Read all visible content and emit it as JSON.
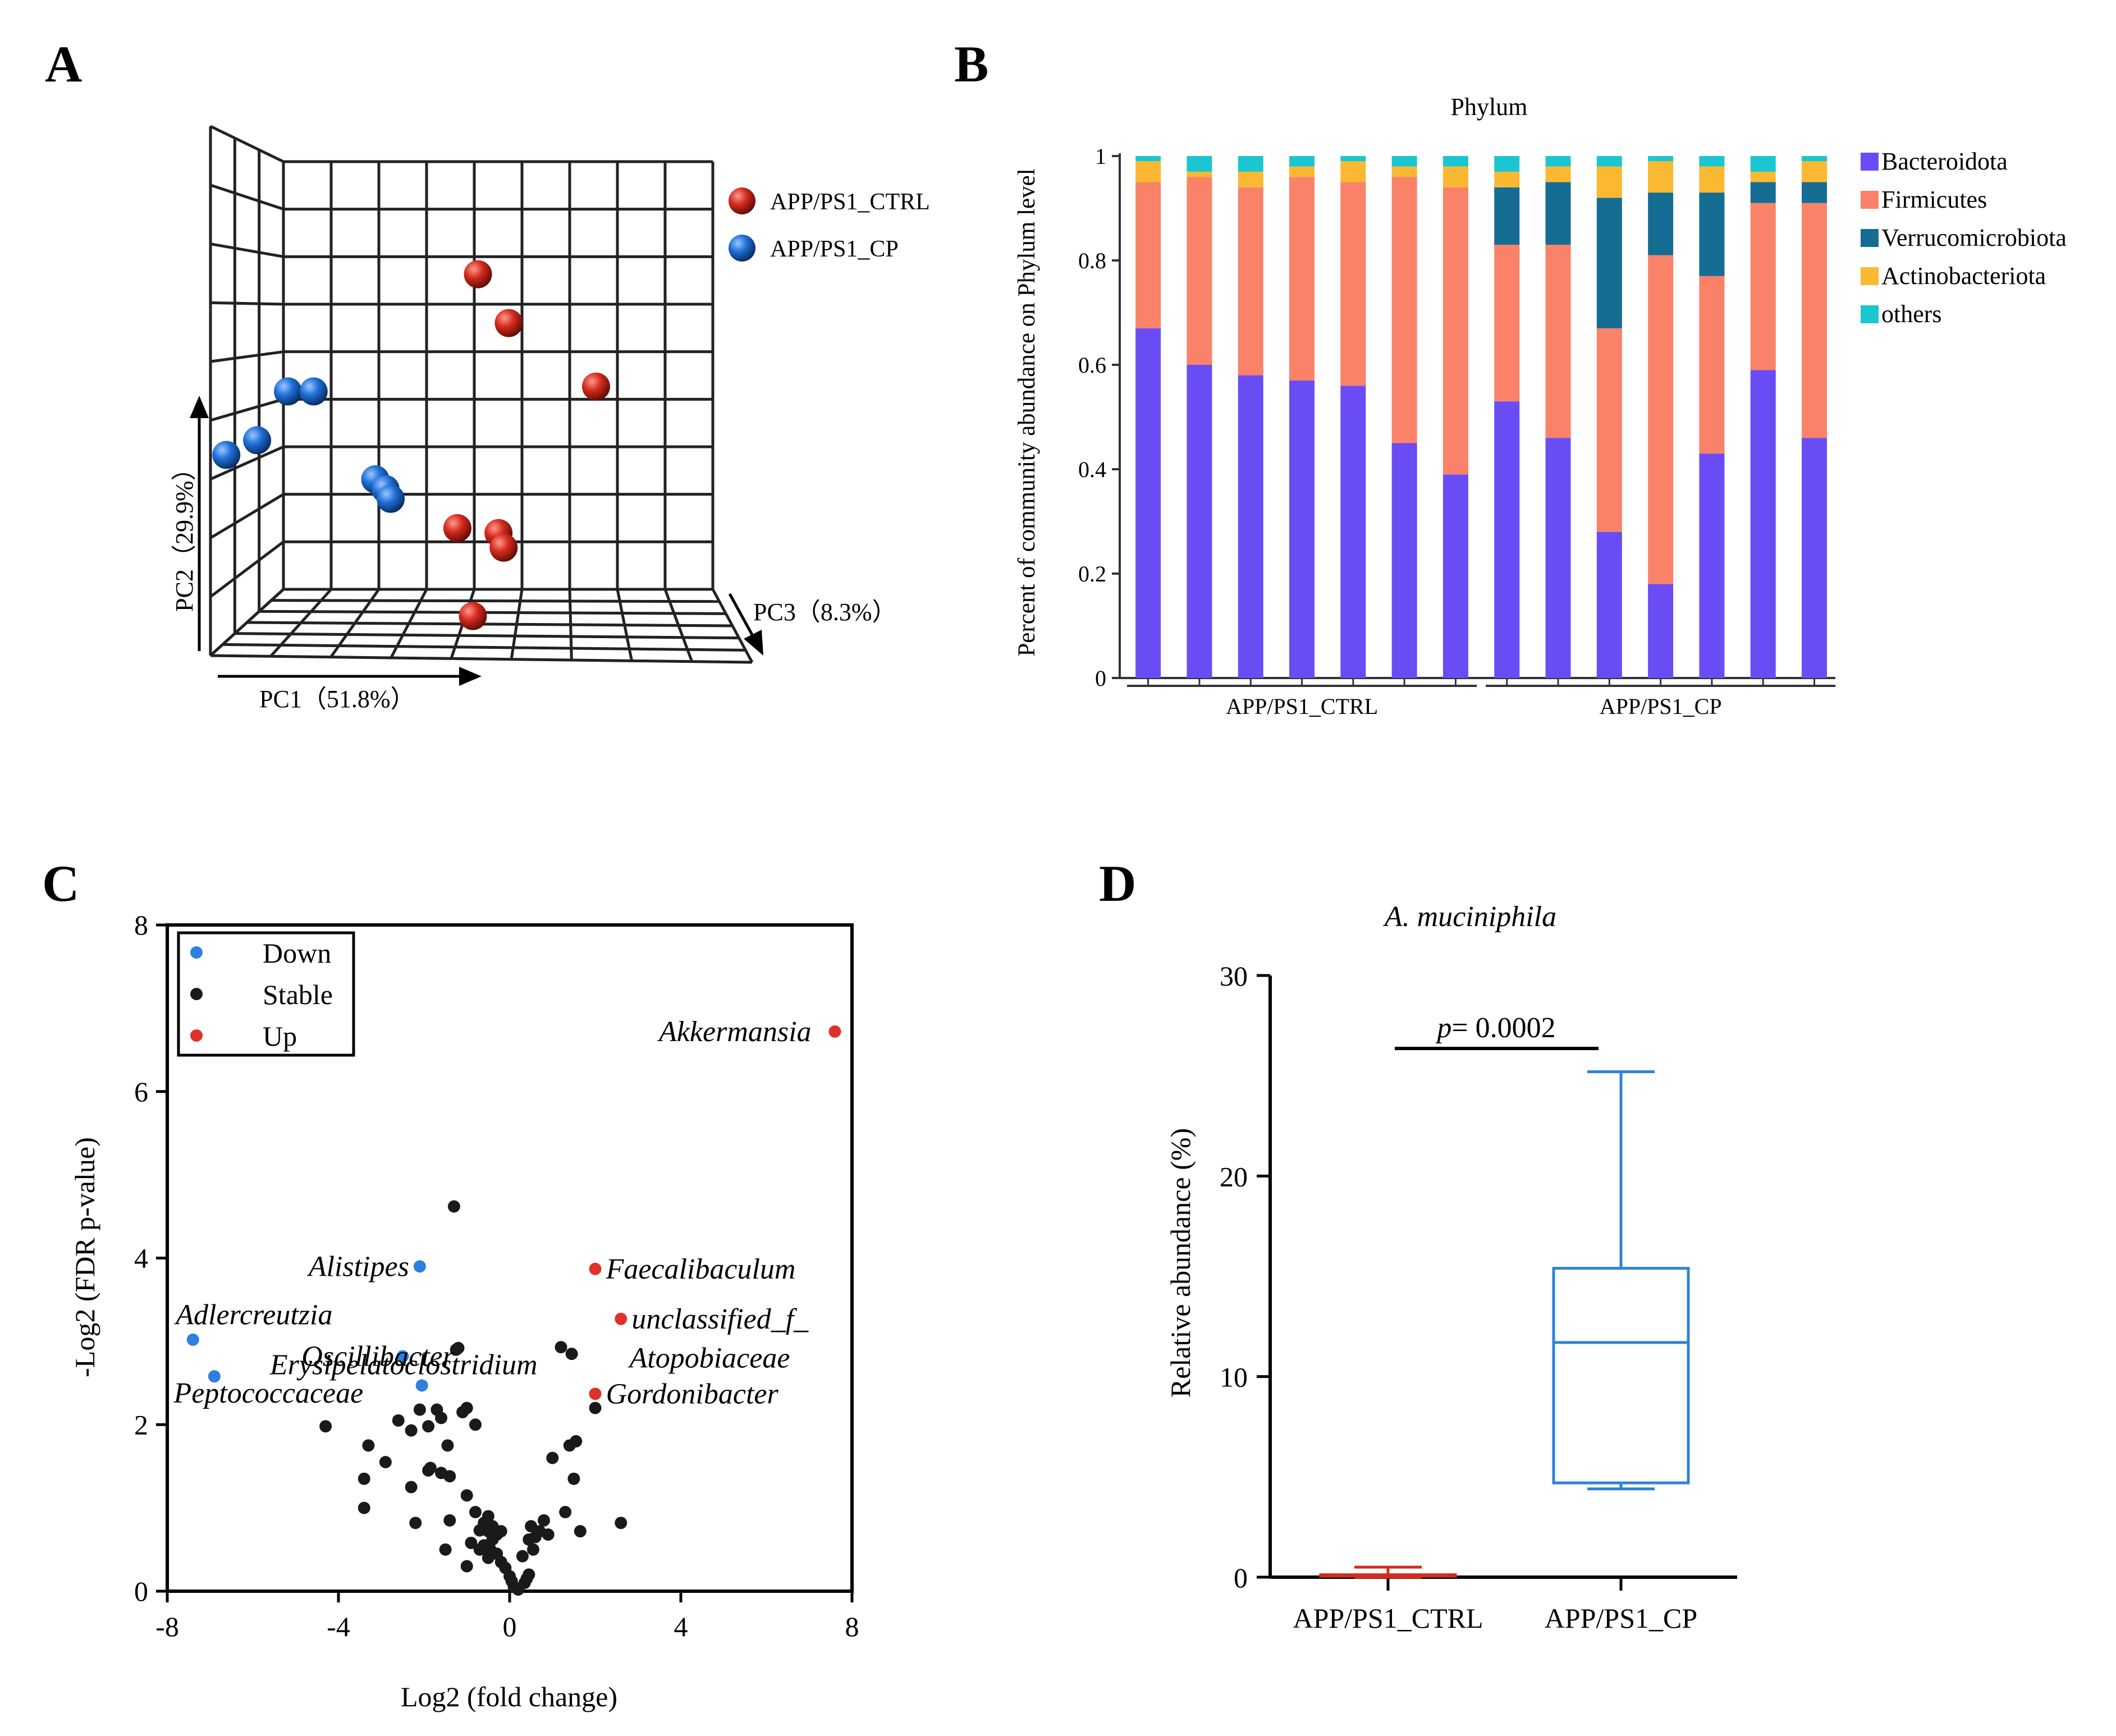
{
  "panels": {
    "a": "A",
    "b": "B",
    "c": "C",
    "d": "D"
  },
  "chart_data": [
    {
      "id": "A",
      "type": "scatter",
      "title": "",
      "axes": {
        "pc1": "PC1（51.8%）",
        "pc2": "PC2（29.9%）",
        "pc3": "PC3（8.3%）"
      },
      "legend": [
        {
          "name": "APP/PS1_CTRL",
          "color": "#d42b1e"
        },
        {
          "name": "APP/PS1_CP",
          "color": "#1f6fd6"
        }
      ],
      "series": [
        {
          "name": "APP/PS1_CTRL",
          "color": "#d42b1e",
          "points": [
            [
              0.57,
              0.72
            ],
            [
              0.63,
              0.62
            ],
            [
              0.8,
              0.49
            ],
            [
              0.53,
              0.2
            ],
            [
              0.61,
              0.19
            ],
            [
              0.62,
              0.16
            ],
            [
              0.56,
              0.02
            ]
          ]
        },
        {
          "name": "APP/PS1_CP",
          "color": "#1f6fd6",
          "points": [
            [
              0.2,
              0.48
            ],
            [
              0.25,
              0.48
            ],
            [
              0.14,
              0.38
            ],
            [
              0.08,
              0.35
            ],
            [
              0.37,
              0.3
            ],
            [
              0.39,
              0.28
            ],
            [
              0.4,
              0.26
            ]
          ]
        }
      ]
    },
    {
      "id": "B",
      "type": "bar",
      "stacked": true,
      "title": "Phylum",
      "ylabel": "Percent of community abundance on Phylum level",
      "ylim": [
        0,
        1
      ],
      "yticks": [
        "0",
        "0.2",
        "0.4",
        "0.6",
        "0.8",
        "1"
      ],
      "groups": [
        {
          "label": "APP/PS1_CTRL",
          "count": 7
        },
        {
          "label": "APP/PS1_CP",
          "count": 7
        }
      ],
      "series": [
        {
          "name": "Bacteroidota",
          "color": "#6a4cf5",
          "values": [
            0.67,
            0.6,
            0.58,
            0.57,
            0.56,
            0.45,
            0.39,
            0.53,
            0.46,
            0.28,
            0.18,
            0.43,
            0.59,
            0.46
          ]
        },
        {
          "name": "Firmicutes",
          "color": "#fa8268",
          "values": [
            0.28,
            0.36,
            0.36,
            0.39,
            0.39,
            0.51,
            0.55,
            0.3,
            0.37,
            0.39,
            0.63,
            0.34,
            0.32,
            0.45
          ]
        },
        {
          "name": "Verrucomicrobiota",
          "color": "#156d94",
          "values": [
            0,
            0,
            0,
            0,
            0,
            0,
            0,
            0.11,
            0.12,
            0.25,
            0.12,
            0.16,
            0.04,
            0.04
          ]
        },
        {
          "name": "Actinobacteriota",
          "color": "#fbb832",
          "values": [
            0.04,
            0.01,
            0.03,
            0.02,
            0.04,
            0.02,
            0.04,
            0.03,
            0.03,
            0.06,
            0.06,
            0.05,
            0.02,
            0.04
          ]
        },
        {
          "name": "others",
          "color": "#1bc6d0",
          "values": [
            0.01,
            0.03,
            0.03,
            0.02,
            0.01,
            0.02,
            0.02,
            0.03,
            0.02,
            0.02,
            0.01,
            0.02,
            0.03,
            0.01
          ]
        }
      ]
    },
    {
      "id": "C",
      "type": "scatter",
      "title": "",
      "xlabel": "Log2 (fold change)",
      "ylabel": "-Log2 (FDR p-value)",
      "xlim": [
        -8,
        8
      ],
      "ylim": [
        0,
        8
      ],
      "xticks": [
        "-8",
        "-4",
        "0",
        "4",
        "8"
      ],
      "yticks": [
        "0",
        "2",
        "4",
        "6",
        "8"
      ],
      "legend": [
        {
          "name": "Down",
          "color": "#2d7fe0"
        },
        {
          "name": "Stable",
          "color": "#1a1a1a"
        },
        {
          "name": "Up",
          "color": "#e0302a"
        }
      ],
      "up": [
        {
          "x": 7.6,
          "y": 6.72,
          "label": "Akkermansia",
          "anchor": "end",
          "dx": -0.55,
          "dy": 0
        },
        {
          "x": 2.0,
          "y": 3.87,
          "label": "Faecalibaculum",
          "anchor": "start",
          "dx": 0.25,
          "dy": 0
        },
        {
          "x": 2.6,
          "y": 3.27,
          "label": "unclassified_f_",
          "anchor": "start",
          "dx": 0.25,
          "dy": 0
        },
        {
          "x": 2.0,
          "y": 2.37,
          "label": "Gordonibacter",
          "anchor": "start",
          "dx": 0.25,
          "dy": 0
        }
      ],
      "down": [
        {
          "x": -2.1,
          "y": 3.9,
          "label": "Alistipes",
          "anchor": "end",
          "dx": -0.25,
          "dy": 0
        },
        {
          "x": -7.4,
          "y": 3.02,
          "label": "Adlercreutzia",
          "anchor": "start",
          "dx": -0.4,
          "dy": 0.3
        },
        {
          "x": -2.5,
          "y": 2.82,
          "label": "Oscillibacter",
          "anchor": "end",
          "dx": 1.2,
          "dy": 0
        },
        {
          "x": -2.05,
          "y": 2.47,
          "label": "Erysipelatoclostridium",
          "anchor": "end",
          "dx": 2.7,
          "dy": 0.25
        },
        {
          "x": -6.9,
          "y": 2.58,
          "label": "Peptococcaceae",
          "anchor": "start",
          "dx": -0.95,
          "dy": -0.2
        }
      ],
      "extra_labels": [
        {
          "x": 2.8,
          "y": 2.8,
          "text": "Atopobiaceae",
          "anchor": "start"
        }
      ],
      "stable": [
        [
          -1.3,
          4.62
        ],
        [
          -1.2,
          2.92
        ],
        [
          -1.25,
          2.9
        ],
        [
          1.2,
          2.93
        ],
        [
          1.45,
          2.85
        ],
        [
          2.0,
          2.2
        ],
        [
          -4.3,
          1.98
        ],
        [
          -3.3,
          1.75
        ],
        [
          -3.4,
          1.35
        ],
        [
          -3.4,
          1.0
        ],
        [
          -2.9,
          1.55
        ],
        [
          -2.6,
          2.05
        ],
        [
          -2.3,
          1.93
        ],
        [
          -2.1,
          2.18
        ],
        [
          -1.9,
          1.98
        ],
        [
          -1.6,
          2.08
        ],
        [
          -1.7,
          2.18
        ],
        [
          -1.45,
          1.75
        ],
        [
          -1.1,
          2.15
        ],
        [
          -1.0,
          2.2
        ],
        [
          -0.8,
          2.0
        ],
        [
          -1.85,
          1.48
        ],
        [
          -1.6,
          1.42
        ],
        [
          -1.9,
          1.45
        ],
        [
          -2.3,
          1.25
        ],
        [
          -1.4,
          1.38
        ],
        [
          -1.0,
          1.15
        ],
        [
          -0.8,
          0.95
        ],
        [
          -0.5,
          0.9
        ],
        [
          -0.6,
          0.82
        ],
        [
          -0.4,
          0.78
        ],
        [
          -0.5,
          0.72
        ],
        [
          -0.7,
          0.73
        ],
        [
          -0.3,
          0.68
        ],
        [
          -0.4,
          0.62
        ],
        [
          -0.6,
          0.55
        ],
        [
          -0.45,
          0.5
        ],
        [
          -0.3,
          0.45
        ],
        [
          -0.5,
          0.4
        ],
        [
          -0.7,
          0.5
        ],
        [
          -0.2,
          0.35
        ],
        [
          -0.1,
          0.28
        ],
        [
          0.0,
          0.18
        ],
        [
          0.05,
          0.12
        ],
        [
          0.1,
          0.05
        ],
        [
          0.2,
          0.02
        ],
        [
          0.35,
          0.1
        ],
        [
          0.4,
          0.15
        ],
        [
          0.45,
          0.2
        ],
        [
          0.3,
          0.42
        ],
        [
          0.55,
          0.5
        ],
        [
          0.6,
          0.65
        ],
        [
          0.7,
          0.72
        ],
        [
          0.5,
          0.78
        ],
        [
          0.8,
          0.85
        ],
        [
          0.9,
          0.68
        ],
        [
          1.0,
          1.6
        ],
        [
          1.3,
          0.95
        ],
        [
          1.4,
          1.75
        ],
        [
          1.55,
          1.8
        ],
        [
          1.5,
          1.35
        ],
        [
          1.65,
          0.72
        ],
        [
          2.6,
          0.82
        ],
        [
          -1.0,
          0.3
        ],
        [
          -1.5,
          0.5
        ],
        [
          -2.2,
          0.82
        ],
        [
          -1.4,
          0.85
        ],
        [
          -0.9,
          0.58
        ],
        [
          -0.2,
          0.72
        ],
        [
          0.45,
          0.62
        ]
      ]
    },
    {
      "id": "D",
      "type": "box",
      "title": "A. muciniphila",
      "ylabel": "Relative abundance (%)",
      "ylim": [
        0,
        30
      ],
      "yticks": [
        "0",
        "10",
        "20",
        "30"
      ],
      "annotation": {
        "p_label": "p",
        "p_value": "= 0.0002"
      },
      "boxes": [
        {
          "name": "APP/PS1_CTRL",
          "color": "#d42b1e",
          "min": 0.0,
          "q1": 0.05,
          "median": 0.08,
          "q3": 0.12,
          "max": 0.5
        },
        {
          "name": "APP/PS1_CP",
          "color": "#2d82d8",
          "min": 4.4,
          "q1": 4.7,
          "median": 11.7,
          "q3": 15.4,
          "max": 25.2
        }
      ]
    }
  ]
}
